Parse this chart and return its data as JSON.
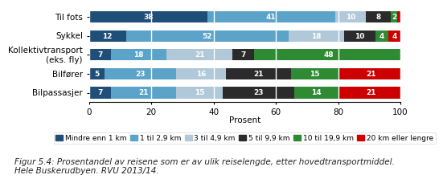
{
  "categories": [
    "Bilpassasjer",
    "Bilfører",
    "Kollektivtransport\n(eks. fly)",
    "Sykkel",
    "Til fots"
  ],
  "series": [
    {
      "label": "Mindre enn 1 km",
      "color": "#1F4E79",
      "values": [
        7,
        5,
        7,
        12,
        38
      ]
    },
    {
      "label": "1 til 2,9 km",
      "color": "#5BA3C9",
      "values": [
        21,
        23,
        18,
        52,
        41
      ]
    },
    {
      "label": "3 til 4,9 km",
      "color": "#B0C8D8",
      "values": [
        15,
        16,
        21,
        18,
        10
      ]
    },
    {
      "label": "5 til 9,9 km",
      "color": "#2B2B2B",
      "values": [
        23,
        21,
        7,
        10,
        8
      ]
    },
    {
      "label": "10 til 19,9 km",
      "color": "#2E8B34",
      "values": [
        14,
        15,
        48,
        4,
        2
      ]
    },
    {
      "label": "20 km eller lengre",
      "color": "#CC0000",
      "values": [
        21,
        21,
        0,
        4,
        1
      ]
    }
  ],
  "xlabel": "Prosent",
  "xlim": [
    0,
    100
  ],
  "xticks": [
    0,
    20,
    40,
    60,
    80,
    100
  ],
  "figcaption": "Figur 5.4: Prosentandel av reisene som er av ulik reiselengde, etter hovedtransportmiddel.\nHele Buskerudbyen. RVU 2013/14.",
  "bar_height": 0.6,
  "text_color": "#FFFFFF",
  "label_fontsize": 6.5,
  "legend_fontsize": 6.5,
  "tick_fontsize": 7.5,
  "caption_fontsize": 7.5,
  "bg_color": "#FFFFFF"
}
